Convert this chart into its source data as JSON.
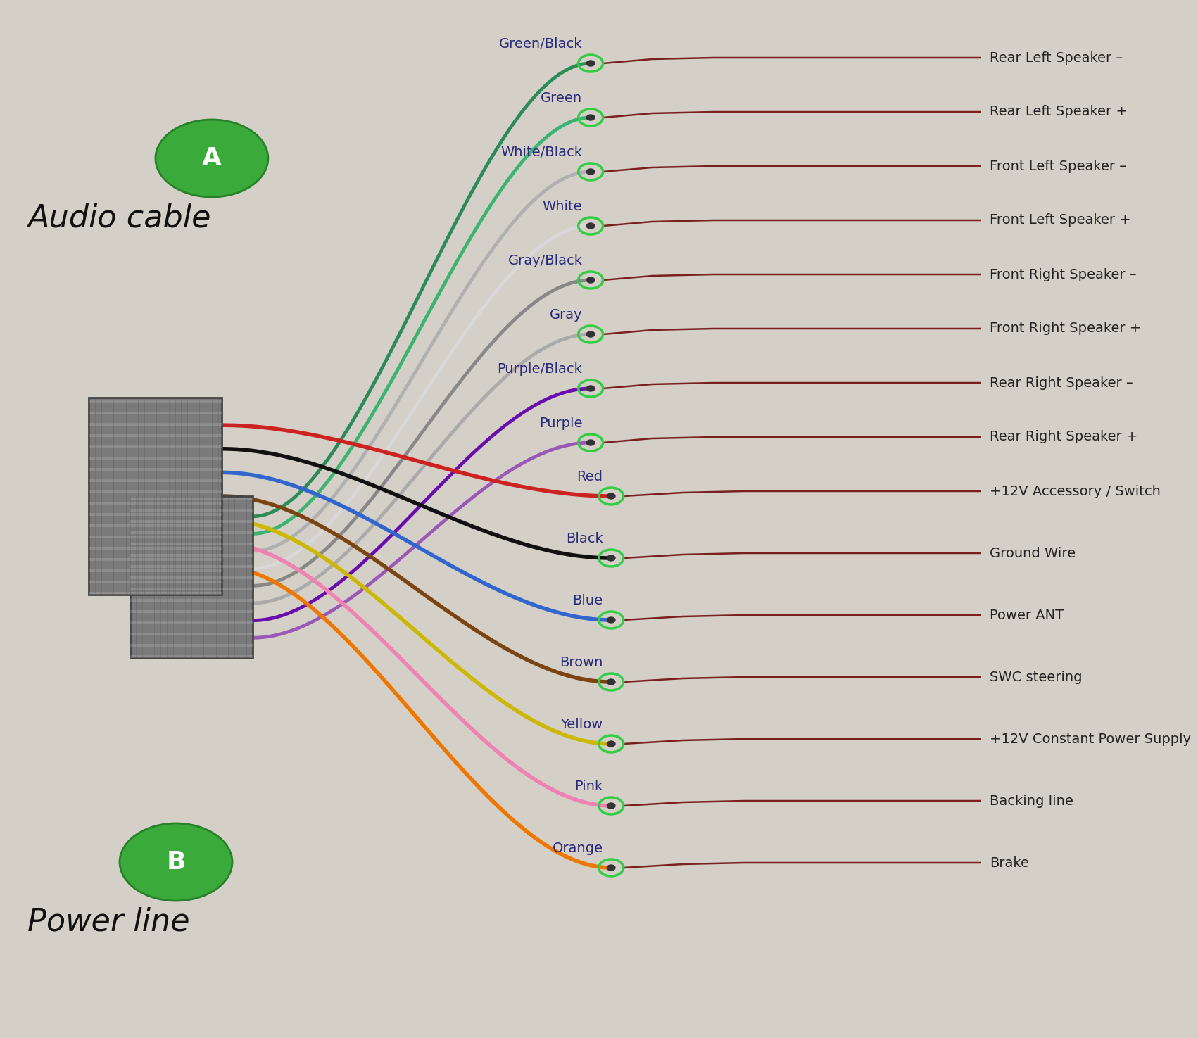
{
  "bg_color": "#d4d0c8",
  "title_a": "Audio cable",
  "title_b": "Power line",
  "label_a": "A",
  "label_b": "B",
  "audio_wires": [
    {
      "wire_color": "#2e8b57",
      "wire_label": "Green/Black",
      "desc": "Rear Left Speaker –"
    },
    {
      "wire_color": "#3cb371",
      "wire_label": "Green",
      "desc": "Rear Left Speaker +"
    },
    {
      "wire_color": "#b0b0b0",
      "wire_label": "White/Black",
      "desc": "Front Left Speaker –"
    },
    {
      "wire_color": "#d8d8d8",
      "wire_label": "White",
      "desc": "Front Left Speaker +"
    },
    {
      "wire_color": "#888888",
      "wire_label": "Gray/Black",
      "desc": "Front Right Speaker –"
    },
    {
      "wire_color": "#aaaaaa",
      "wire_label": "Gray",
      "desc": "Front Right Speaker +"
    },
    {
      "wire_color": "#6a0dad",
      "wire_label": "Purple/Black",
      "desc": "Rear Right Speaker –"
    },
    {
      "wire_color": "#9b59b6",
      "wire_label": "Purple",
      "desc": "Rear Right Speaker +"
    }
  ],
  "power_wires": [
    {
      "wire_color": "#cc2222",
      "wire_label": "Red",
      "desc": "+12V Accessory / Switch"
    },
    {
      "wire_color": "#111111",
      "wire_label": "Black",
      "desc": "Ground Wire"
    },
    {
      "wire_color": "#3366cc",
      "wire_label": "Blue",
      "desc": "Power ANT"
    },
    {
      "wire_color": "#7b4513",
      "wire_label": "Brown",
      "desc": "SWC steering"
    },
    {
      "wire_color": "#ccb800",
      "wire_label": "Yellow",
      "desc": "+12V Constant Power Supply"
    },
    {
      "wire_color": "#ee82b0",
      "wire_label": "Pink",
      "desc": "Backing line"
    },
    {
      "wire_color": "#ee7700",
      "wire_label": "Orange",
      "desc": "Brake"
    }
  ],
  "terminal_color": "#33cc44",
  "outgoing_color": "#7a2020",
  "wire_label_color": "#2a2a7a",
  "desc_color": "#222222",
  "connector_fill": "#7a7a7a",
  "connector_edge": "#444444"
}
